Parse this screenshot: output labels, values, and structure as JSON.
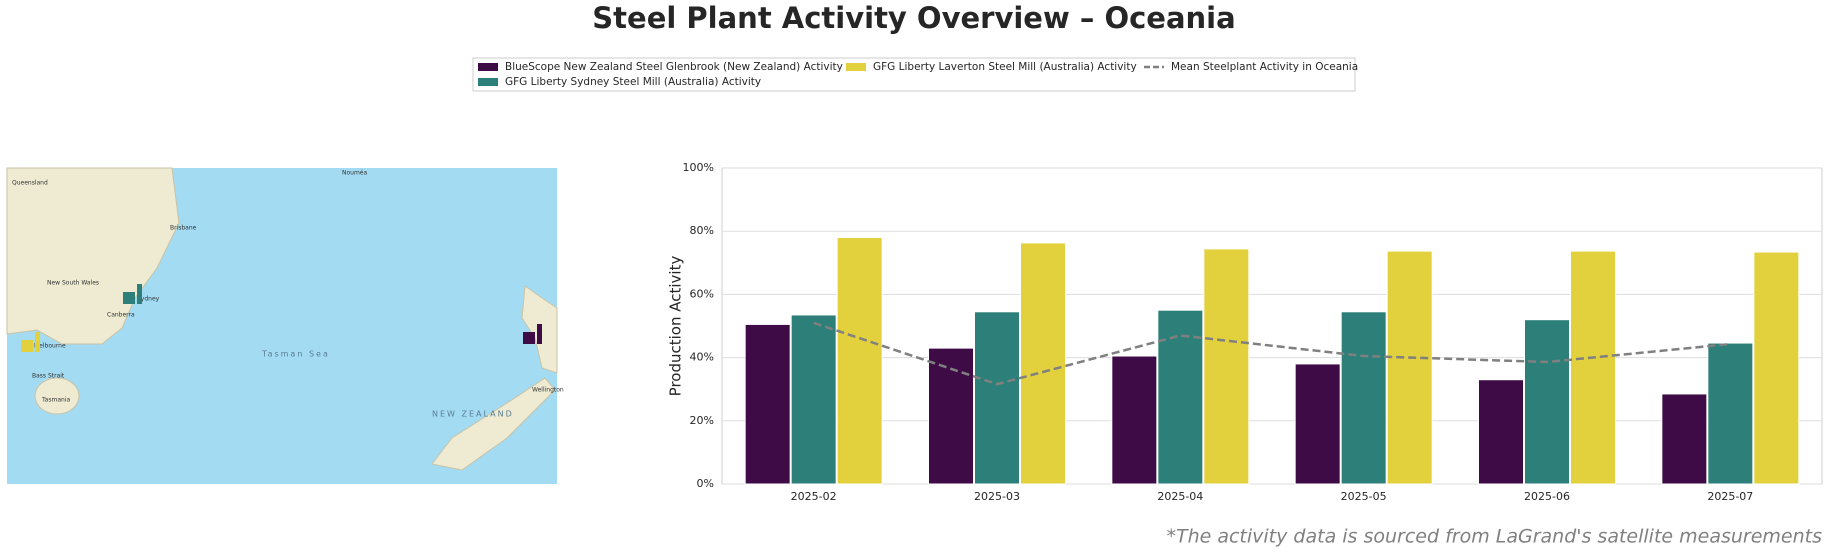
{
  "chart_data": {
    "type": "bar",
    "title": "Steel Plant Activity Overview – Oceania",
    "ylabel": "Production Activity",
    "footnote": "*The activity data is sourced from LaGrand's satellite measurements",
    "categories": [
      "2025-02",
      "2025-03",
      "2025-04",
      "2025-05",
      "2025-06",
      "2025-07"
    ],
    "series": [
      {
        "name": "BlueScope New Zealand Steel Glenbrook (New Zealand) Activity",
        "color": "#3e0b47",
        "values": [
          50.5,
          43,
          40.5,
          38,
          33,
          28.5
        ]
      },
      {
        "name": "GFG Liberty Sydney Steel Mill (Australia) Activity",
        "color": "#2c8079",
        "values": [
          53.5,
          54.5,
          55,
          54.5,
          52,
          44.6
        ]
      },
      {
        "name": "GFG Liberty Laverton Steel Mill (Australia) Activity",
        "color": "#e2d13c",
        "values": [
          78,
          76.3,
          74.4,
          73.7,
          73.7,
          73.4
        ]
      },
      {
        "name": "Mean Steelplant Activity in Oceania",
        "color": "#808080",
        "type": "line",
        "dashed": true,
        "values": [
          51,
          31.6,
          47,
          40.5,
          38.6,
          44.3
        ]
      }
    ],
    "ylim": [
      0,
      100
    ],
    "yticks": [
      {
        "value": 0,
        "label": "0%"
      },
      {
        "value": 20,
        "label": "20%"
      },
      {
        "value": 40,
        "label": "40%"
      },
      {
        "value": 60,
        "label": "60%"
      },
      {
        "value": 80,
        "label": "80%"
      },
      {
        "value": 100,
        "label": "100%"
      }
    ],
    "grid": true,
    "map_labels": [
      "Queensland",
      "Brisbane",
      "New South Wales",
      "Sydney",
      "Canberra",
      "Melbourne",
      "Bass Strait",
      "Tasmania",
      "Tasman Sea",
      "NEW ZEALAND",
      "Wellington",
      "Nouméa"
    ]
  }
}
